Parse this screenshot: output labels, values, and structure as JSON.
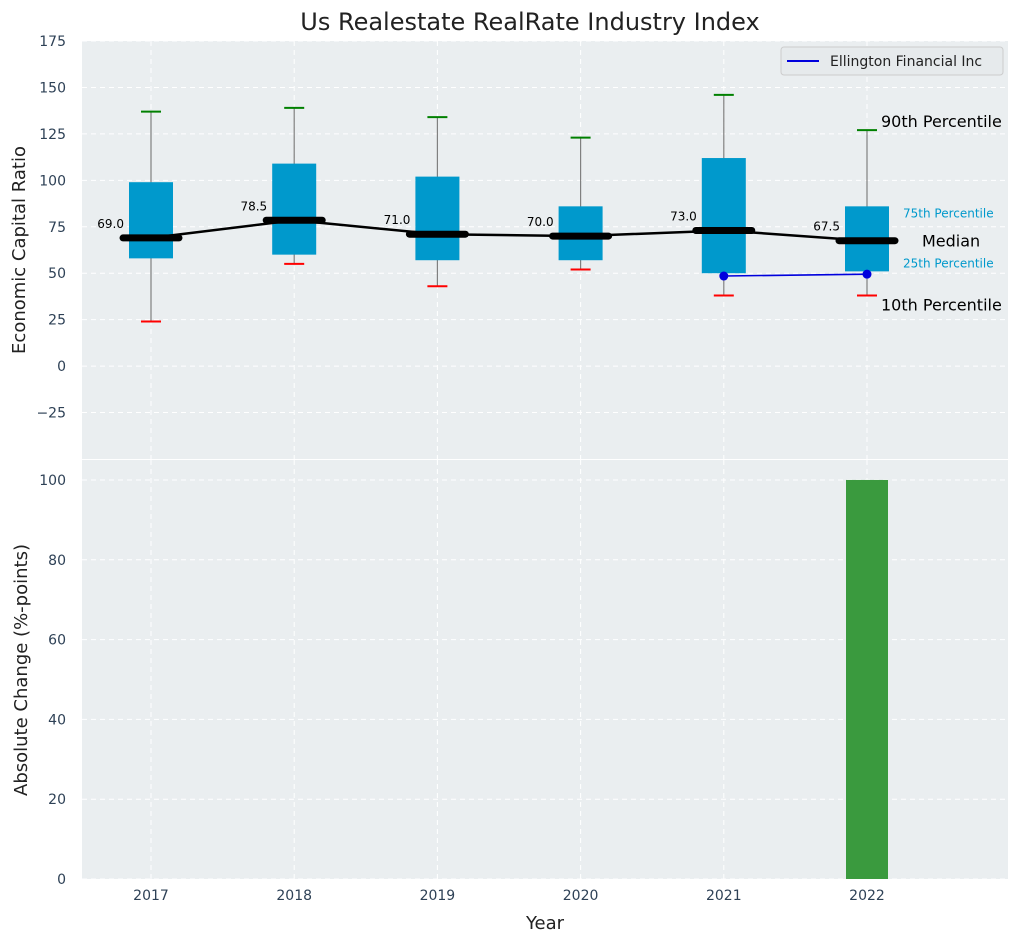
{
  "chart_data": [
    {
      "type": "box",
      "title": "Us Realestate RealRate Industry Index",
      "xlabel": "",
      "ylabel": "Economic Capital Ratio",
      "ylim": [
        -50,
        175
      ],
      "yticks": [
        -25,
        0,
        25,
        50,
        75,
        100,
        125,
        150,
        175
      ],
      "ytick_labels": [
        "−25",
        "0",
        "25",
        "50",
        "75",
        "100",
        "125",
        "150",
        "175"
      ],
      "categories": [
        "2017",
        "2018",
        "2019",
        "2020",
        "2021",
        "2022"
      ],
      "boxes": [
        {
          "year": "2017",
          "p10": 24,
          "p25": 58,
          "median": 69.0,
          "p75": 99,
          "p90": 137
        },
        {
          "year": "2018",
          "p10": 55,
          "p25": 60,
          "median": 78.5,
          "p75": 109,
          "p90": 139
        },
        {
          "year": "2019",
          "p10": 43,
          "p25": 57,
          "median": 71.0,
          "p75": 102,
          "p90": 134
        },
        {
          "year": "2020",
          "p10": 52,
          "p25": 57,
          "median": 70.0,
          "p75": 86,
          "p90": 123
        },
        {
          "year": "2021",
          "p10": 38,
          "p25": 50,
          "median": 73.0,
          "p75": 112,
          "p90": 146
        },
        {
          "year": "2022",
          "p10": 38,
          "p25": 51,
          "median": 67.5,
          "p75": 86,
          "p90": 127
        }
      ],
      "median_labels": [
        "69.0",
        "78.5",
        "71.0",
        "70.0",
        "73.0",
        "67.5"
      ],
      "series": [
        {
          "name": "Ellington Financial Inc",
          "x": [
            "2021",
            "2022"
          ],
          "values": [
            48.5,
            49.5
          ]
        }
      ],
      "annotations": {
        "p90": "90th Percentile",
        "p75": "75th Percentile",
        "median": "Median",
        "p25": "25th Percentile",
        "p10": "10th Percentile"
      },
      "legend": {
        "position": "top-right",
        "entries": [
          "Ellington Financial Inc"
        ]
      },
      "grid": true
    },
    {
      "type": "bar",
      "xlabel": "Year",
      "ylabel": "Absolute Change (%-points)",
      "ylim": [
        0,
        105
      ],
      "yticks": [
        0,
        20,
        40,
        60,
        80,
        100
      ],
      "ytick_labels": [
        "0",
        "20",
        "40",
        "60",
        "80",
        "100"
      ],
      "categories": [
        "2017",
        "2018",
        "2019",
        "2020",
        "2021",
        "2022"
      ],
      "values": [
        0,
        0,
        0,
        0,
        0,
        100
      ],
      "grid": true
    }
  ],
  "colors": {
    "panel_bg": "#eaeef0",
    "box_fill": "#0099cc",
    "median_line": "#000000",
    "whisker_line": "#808080",
    "p90_cap": "#008000",
    "p10_cap": "#ff0000",
    "company_line": "#0000dd",
    "bar": "#3a9a3e",
    "annotation_blue": "#0099cc",
    "tick_text": "#2e4156",
    "grid": "#ffffff"
  }
}
